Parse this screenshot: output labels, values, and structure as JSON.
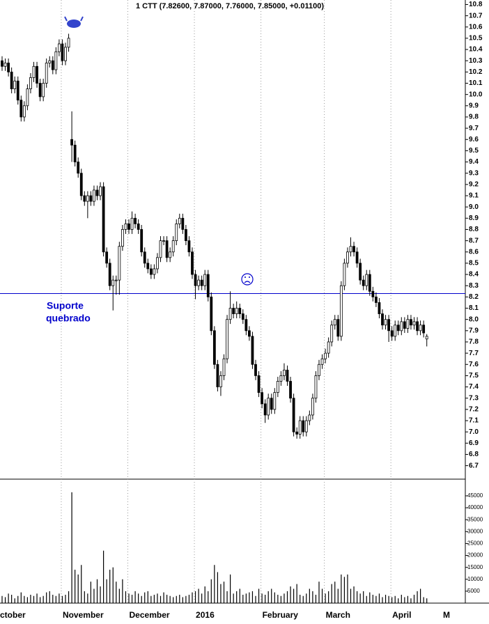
{
  "chart_data": {
    "type": "candlestick",
    "title": "1 CTT (7.82600, 7.87000, 7.76000, 7.85000, +0.01100)",
    "annotations": [
      "Suporte",
      "quebrado"
    ],
    "support_level": 8.23,
    "support_color": "#0000cc",
    "up_color": "#ffffff",
    "down_color": "#000000",
    "volume_color": "#000000",
    "grid": true,
    "categories": [
      "ctober",
      null,
      null,
      null,
      null,
      null,
      null,
      null,
      null,
      null,
      null,
      null,
      null,
      null,
      null,
      null,
      null,
      null,
      null,
      "November",
      null,
      null,
      null,
      null,
      null,
      null,
      null,
      null,
      null,
      null,
      null,
      null,
      null,
      null,
      null,
      null,
      null,
      null,
      null,
      null,
      "December",
      null,
      null,
      null,
      null,
      null,
      null,
      null,
      null,
      null,
      null,
      null,
      null,
      null,
      null,
      null,
      null,
      null,
      null,
      null,
      null,
      "2016",
      null,
      null,
      null,
      null,
      null,
      null,
      null,
      null,
      null,
      null,
      null,
      null,
      null,
      null,
      null,
      null,
      null,
      null,
      null,
      null,
      "February",
      null,
      null,
      null,
      null,
      null,
      null,
      null,
      null,
      null,
      null,
      null,
      null,
      null,
      null,
      null,
      null,
      null,
      null,
      null,
      "March",
      null,
      null,
      null,
      null,
      null,
      null,
      null,
      null,
      null,
      null,
      null,
      null,
      null,
      null,
      null,
      null,
      null,
      null,
      null,
      null,
      "April",
      null,
      null,
      null,
      null,
      null,
      null,
      null,
      null,
      null,
      null,
      null
    ],
    "next_label": "M",
    "open": [
      10.3,
      10.25,
      10.28,
      10.2,
      10.05,
      10.12,
      9.95,
      9.8,
      9.9,
      10.05,
      10.15,
      10.25,
      10.1,
      9.98,
      10.1,
      10.28,
      10.3,
      10.22,
      10.38,
      10.45,
      10.3,
      10.42,
      9.6,
      9.55,
      9.4,
      9.3,
      9.1,
      9.05,
      9.1,
      9.05,
      9.15,
      9.1,
      9.18,
      8.6,
      8.5,
      8.3,
      8.35,
      8.35,
      8.65,
      8.8,
      8.85,
      8.8,
      8.9,
      8.85,
      8.8,
      8.6,
      8.5,
      8.45,
      8.4,
      8.45,
      8.55,
      8.7,
      8.7,
      8.55,
      8.6,
      8.7,
      8.85,
      8.9,
      8.8,
      8.7,
      8.6,
      8.4,
      8.3,
      8.35,
      8.3,
      8.4,
      8.2,
      7.9,
      7.6,
      7.4,
      7.5,
      7.65,
      8.0,
      8.1,
      8.05,
      8.1,
      8.05,
      8.0,
      7.9,
      7.85,
      7.6,
      7.5,
      7.35,
      7.25,
      7.15,
      7.3,
      7.2,
      7.35,
      7.45,
      7.5,
      7.55,
      7.45,
      7.3,
      7.0,
      6.98,
      7.1,
      7.0,
      7.1,
      7.15,
      7.3,
      7.5,
      7.6,
      7.65,
      7.7,
      7.8,
      7.95,
      8.0,
      7.85,
      8.3,
      8.5,
      8.6,
      8.65,
      8.6,
      8.5,
      8.35,
      8.3,
      8.4,
      8.25,
      8.2,
      8.15,
      8.05,
      7.95,
      8.0,
      7.9,
      7.85,
      7.95,
      7.9,
      7.98,
      7.92,
      8.0,
      7.95,
      7.98,
      7.9,
      7.95,
      7.826
    ],
    "high": [
      10.34,
      10.32,
      10.32,
      10.24,
      10.16,
      10.16,
      9.99,
      9.94,
      10.09,
      10.19,
      10.29,
      10.29,
      10.14,
      10.14,
      10.32,
      10.34,
      10.34,
      10.42,
      10.49,
      10.49,
      10.46,
      10.54,
      9.85,
      9.59,
      9.44,
      9.34,
      9.14,
      9.14,
      9.14,
      9.19,
      9.19,
      9.22,
      9.22,
      8.64,
      8.54,
      8.39,
      8.39,
      8.69,
      8.84,
      8.89,
      8.89,
      8.96,
      8.94,
      8.89,
      8.84,
      8.64,
      8.54,
      8.49,
      8.49,
      8.59,
      8.74,
      8.74,
      8.74,
      8.64,
      8.74,
      8.89,
      8.94,
      8.94,
      8.84,
      8.74,
      8.64,
      8.44,
      8.39,
      8.39,
      8.44,
      8.44,
      8.24,
      7.94,
      7.64,
      7.54,
      7.69,
      8.04,
      8.25,
      8.14,
      8.16,
      8.14,
      8.09,
      8.04,
      7.94,
      7.89,
      7.64,
      7.54,
      7.39,
      7.29,
      7.34,
      7.34,
      7.39,
      7.49,
      7.54,
      7.61,
      7.59,
      7.49,
      7.34,
      7.04,
      7.14,
      7.14,
      7.14,
      7.19,
      7.34,
      7.54,
      7.64,
      7.69,
      7.74,
      7.84,
      7.99,
      8.04,
      8.04,
      8.34,
      8.54,
      8.64,
      8.73,
      8.69,
      8.64,
      8.54,
      8.39,
      8.44,
      8.44,
      8.29,
      8.24,
      8.19,
      8.09,
      8.04,
      8.04,
      7.94,
      7.99,
      7.99,
      8.02,
      8.02,
      8.04,
      8.04,
      8.02,
      8.02,
      7.99,
      7.99,
      7.87
    ],
    "low": [
      10.21,
      10.21,
      10.16,
      10.01,
      10.01,
      9.91,
      9.76,
      9.76,
      9.86,
      10.01,
      10.11,
      10.06,
      9.94,
      9.94,
      10.06,
      10.24,
      10.18,
      10.18,
      10.34,
      10.26,
      10.26,
      10.38,
      9.4,
      9.36,
      9.26,
      9.06,
      9.01,
      8.9,
      9.01,
      9.01,
      9.06,
      9.06,
      8.56,
      8.46,
      8.26,
      8.08,
      8.22,
      8.22,
      8.61,
      8.76,
      8.76,
      8.76,
      8.81,
      8.76,
      8.56,
      8.46,
      8.41,
      8.36,
      8.36,
      8.41,
      8.51,
      8.66,
      8.51,
      8.51,
      8.56,
      8.66,
      8.81,
      8.76,
      8.66,
      8.56,
      8.36,
      8.18,
      8.26,
      8.26,
      8.26,
      8.16,
      7.86,
      7.56,
      7.36,
      7.32,
      7.46,
      7.61,
      7.96,
      8.01,
      8.01,
      8.01,
      7.96,
      7.86,
      7.81,
      7.56,
      7.46,
      7.31,
      7.21,
      7.08,
      7.11,
      7.16,
      7.16,
      7.31,
      7.41,
      7.46,
      7.41,
      7.26,
      6.96,
      6.94,
      6.94,
      6.96,
      6.96,
      7.06,
      7.11,
      7.26,
      7.46,
      7.56,
      7.61,
      7.66,
      7.76,
      7.91,
      7.81,
      7.81,
      8.26,
      8.46,
      8.56,
      8.56,
      8.46,
      8.31,
      8.26,
      8.26,
      8.21,
      8.16,
      8.11,
      8.01,
      7.91,
      7.91,
      7.8,
      7.81,
      7.81,
      7.86,
      7.86,
      7.88,
      7.88,
      7.91,
      7.91,
      7.86,
      7.86,
      7.84,
      7.76
    ],
    "close": [
      10.25,
      10.28,
      10.2,
      10.05,
      10.12,
      9.95,
      9.8,
      9.9,
      10.05,
      10.15,
      10.25,
      10.1,
      9.98,
      10.1,
      10.28,
      10.3,
      10.22,
      10.38,
      10.45,
      10.3,
      10.42,
      10.5,
      9.55,
      9.4,
      9.3,
      9.1,
      9.05,
      9.1,
      9.05,
      9.15,
      9.1,
      9.18,
      8.6,
      8.5,
      8.3,
      8.35,
      8.35,
      8.65,
      8.8,
      8.85,
      8.8,
      8.9,
      8.85,
      8.8,
      8.6,
      8.5,
      8.45,
      8.4,
      8.45,
      8.55,
      8.7,
      8.7,
      8.55,
      8.6,
      8.7,
      8.85,
      8.9,
      8.8,
      8.7,
      8.6,
      8.4,
      8.3,
      8.35,
      8.3,
      8.4,
      8.2,
      7.9,
      7.6,
      7.4,
      7.5,
      7.65,
      8.0,
      8.1,
      8.05,
      8.1,
      8.05,
      8.0,
      7.9,
      7.85,
      7.6,
      7.5,
      7.35,
      7.25,
      7.15,
      7.3,
      7.2,
      7.35,
      7.45,
      7.5,
      7.55,
      7.45,
      7.3,
      7.0,
      6.98,
      7.1,
      7.0,
      7.1,
      7.15,
      7.3,
      7.5,
      7.6,
      7.65,
      7.7,
      7.8,
      7.95,
      8.0,
      7.85,
      8.3,
      8.5,
      8.6,
      8.65,
      8.6,
      8.5,
      8.35,
      8.3,
      8.4,
      8.25,
      8.2,
      8.15,
      8.05,
      7.95,
      8.0,
      7.9,
      7.85,
      7.95,
      7.9,
      7.98,
      7.92,
      8.0,
      7.95,
      7.98,
      7.9,
      7.95,
      7.88,
      7.85
    ],
    "volume": [
      3000,
      2500,
      4000,
      3500,
      2000,
      3000,
      4500,
      3000,
      2500,
      3500,
      3000,
      4000,
      2500,
      3000,
      4500,
      5000,
      3500,
      3000,
      4000,
      3000,
      3500,
      5000,
      46500,
      14000,
      12000,
      16000,
      5000,
      4000,
      9000,
      6000,
      10000,
      7000,
      22000,
      10000,
      14000,
      15000,
      9000,
      6000,
      10000,
      5000,
      4000,
      3500,
      5000,
      4000,
      3000,
      4500,
      5000,
      3000,
      3500,
      4000,
      3000,
      4500,
      3500,
      3000,
      2500,
      3000,
      3500,
      2500,
      3000,
      3500,
      4500,
      5000,
      6000,
      4000,
      7000,
      5000,
      10000,
      16000,
      13000,
      8000,
      9000,
      5000,
      12000,
      4000,
      5000,
      6000,
      3500,
      4000,
      4500,
      5000,
      3000,
      6000,
      4000,
      3500,
      5000,
      6000,
      4500,
      3500,
      3000,
      4000,
      5000,
      7000,
      6000,
      8000,
      3500,
      3000,
      4000,
      6000,
      5000,
      3500,
      9000,
      6000,
      4000,
      5000,
      8000,
      9000,
      6000,
      12000,
      11000,
      12000,
      6000,
      7000,
      5000,
      4000,
      5000,
      3000,
      4500,
      3500,
      3000,
      4000,
      2500,
      3500,
      3000,
      2500,
      3000,
      2000,
      3500,
      2500,
      3000,
      2000,
      3500,
      5000,
      6000,
      2500,
      2000
    ],
    "ylim": [
      6.58,
      10.84
    ],
    "yticks": [
      6.7,
      6.8,
      6.9,
      {
        "value": 7.0,
        "label": "7.0"
      },
      7.1,
      7.2,
      7.3,
      7.4,
      7.5,
      7.6,
      7.7,
      7.8,
      7.9,
      {
        "value": 8.0,
        "label": "8.0"
      },
      8.1,
      8.2,
      8.3,
      8.4,
      8.5,
      8.6,
      8.7,
      8.8,
      8.9,
      {
        "value": 9.0,
        "label": "9.0"
      },
      9.1,
      9.2,
      9.3,
      9.4,
      9.5,
      9.6,
      9.7,
      9.8,
      9.9,
      {
        "value": 10.0,
        "label": "10.0"
      },
      10.1,
      10.2,
      10.3,
      10.4,
      10.5,
      10.6,
      10.7,
      10.8
    ],
    "y2lim": [
      0,
      52000
    ],
    "y2ticks": [
      5000,
      10000,
      15000,
      20000,
      25000,
      30000,
      35000,
      40000,
      45000
    ]
  }
}
